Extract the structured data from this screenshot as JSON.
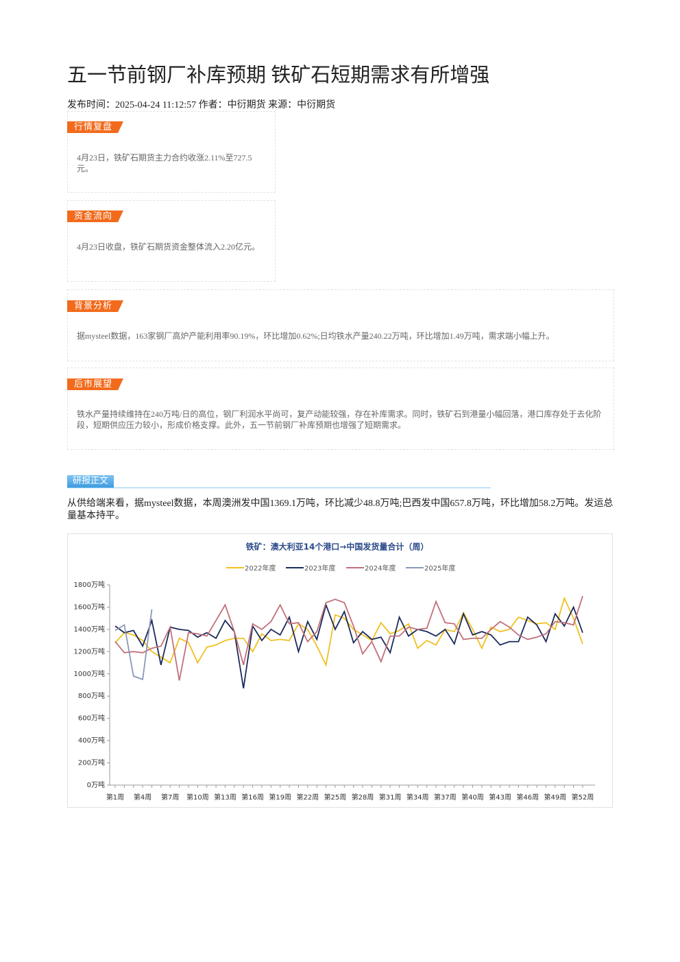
{
  "header": {
    "title": "五一节前钢厂补库预期 铁矿石短期需求有所增强",
    "meta": "发布时间：2025-04-24 11:12:57 作者：中衍期货 来源：中衍期货"
  },
  "sections": [
    {
      "tag": "行情复盘",
      "text": "4月23日，铁矿石期货主力合约收涨2.11%至727.5元。"
    },
    {
      "tag": "资金流向",
      "text": "4月23日收盘，铁矿石期货资金整体流入2.20亿元。"
    },
    {
      "tag": "背景分析",
      "text": "据mysteel数据，163家钢厂高炉产能利用率90.19%，环比增加0.62%;日均铁水产量240.22万吨，环比增加1.49万吨，需求端小幅上升。"
    },
    {
      "tag": "后市展望",
      "text": "铁水产量持续维持在240万吨/日的高位，钢厂利润水平尚可，复产动能较强，存在补库需求。同时，铁矿石到港量小幅回落，港口库存处于去化阶段，短期供应压力较小，形成价格支撑。此外，五一节前钢厂补库预期也增强了短期需求。"
    }
  ],
  "report": {
    "tag": "研报正文",
    "text": "从供给端来看，据mysteel数据，本周澳洲发中国1369.1万吨，环比减少48.8万吨;巴西发中国657.8万吨，环比增加58.2万吨。发运总量基本持平。"
  },
  "chart_data": {
    "type": "line",
    "title": "铁矿：澳大利亚14个港口→中国发货量合计（周）",
    "categories": [
      "第1周",
      null,
      null,
      "第4周",
      null,
      null,
      "第7周",
      null,
      null,
      "第10周",
      null,
      null,
      "第13周",
      null,
      null,
      "第16周",
      null,
      null,
      "第19周",
      null,
      null,
      "第22周",
      null,
      null,
      "第25周",
      null,
      null,
      "第28周",
      null,
      null,
      "第31周",
      null,
      null,
      "第34周",
      null,
      null,
      "第37周",
      null,
      null,
      "第40周",
      null,
      null,
      "第43周",
      null,
      null,
      "第46周",
      null,
      null,
      "第49周",
      null,
      null,
      "第52周"
    ],
    "series": [
      {
        "name": "2022年度",
        "color": "#f0c020",
        "values": [
          1280,
          1370,
          1350,
          1300,
          1200,
          1150,
          1100,
          1320,
          1280,
          1100,
          1240,
          1260,
          1300,
          1320,
          1320,
          1200,
          1360,
          1300,
          1310,
          1300,
          1450,
          1400,
          1250,
          1080,
          1530,
          1500,
          1400,
          1350,
          1300,
          1460,
          1360,
          1390,
          1450,
          1230,
          1300,
          1260,
          1400,
          1380,
          1550,
          1400,
          1230,
          1420,
          1380,
          1400,
          1510,
          1480,
          1450,
          1460,
          1400,
          1680,
          1500,
          1270
        ]
      },
      {
        "name": "2023年度",
        "color": "#1a2a5a",
        "values": [
          1430,
          1370,
          1390,
          1250,
          1480,
          1080,
          1420,
          1400,
          1390,
          1330,
          1370,
          1320,
          1480,
          1380,
          870,
          1430,
          1300,
          1400,
          1350,
          1510,
          1200,
          1470,
          1310,
          1620,
          1400,
          1560,
          1280,
          1380,
          1310,
          1330,
          1190,
          1510,
          1340,
          1400,
          1380,
          1340,
          1400,
          1270,
          1540,
          1350,
          1380,
          1350,
          1260,
          1290,
          1290,
          1510,
          1440,
          1290,
          1540,
          1430,
          1600,
          1370
        ]
      },
      {
        "name": "2024年度",
        "color": "#c0707a",
        "values": [
          1290,
          1190,
          1200,
          1190,
          1230,
          1250,
          1420,
          940,
          1370,
          1360,
          1340,
          1480,
          1620,
          1380,
          1080,
          1450,
          1400,
          1470,
          1620,
          1450,
          1460,
          1290,
          1380,
          1640,
          1670,
          1640,
          1430,
          1180,
          1290,
          1110,
          1340,
          1340,
          1420,
          1400,
          1410,
          1650,
          1460,
          1450,
          1310,
          1320,
          1320,
          1400,
          1470,
          1420,
          1350,
          1310,
          1330,
          1360,
          1470,
          1460,
          1440,
          1700
        ]
      },
      {
        "name": "2025年度",
        "color": "#8a98b8",
        "values": [
          1390,
          1440,
          980,
          950,
          1580,
          null,
          null,
          null,
          null,
          null,
          null,
          null,
          null,
          null,
          null,
          null,
          null,
          null,
          null,
          null,
          null,
          null,
          null,
          null,
          null,
          null,
          null,
          null,
          null,
          null,
          null,
          null,
          null,
          null,
          null,
          null,
          null,
          null,
          null,
          null,
          null,
          null,
          null,
          null,
          null,
          null,
          null,
          null,
          null,
          null,
          null,
          null
        ]
      }
    ],
    "ylim": [
      0,
      1800
    ],
    "yticks": [
      {
        "value": 0,
        "label": "0万吨"
      },
      {
        "value": 200,
        "label": "200万吨"
      },
      {
        "value": 400,
        "label": "400万吨"
      },
      {
        "value": 600,
        "label": "600万吨"
      },
      {
        "value": 800,
        "label": "800万吨"
      },
      {
        "value": 1000,
        "label": "1000万吨"
      },
      {
        "value": 1200,
        "label": "1200万吨"
      },
      {
        "value": 1400,
        "label": "1400万吨"
      },
      {
        "value": 1600,
        "label": "1600万吨"
      },
      {
        "value": 1800,
        "label": "1800万吨"
      }
    ]
  }
}
